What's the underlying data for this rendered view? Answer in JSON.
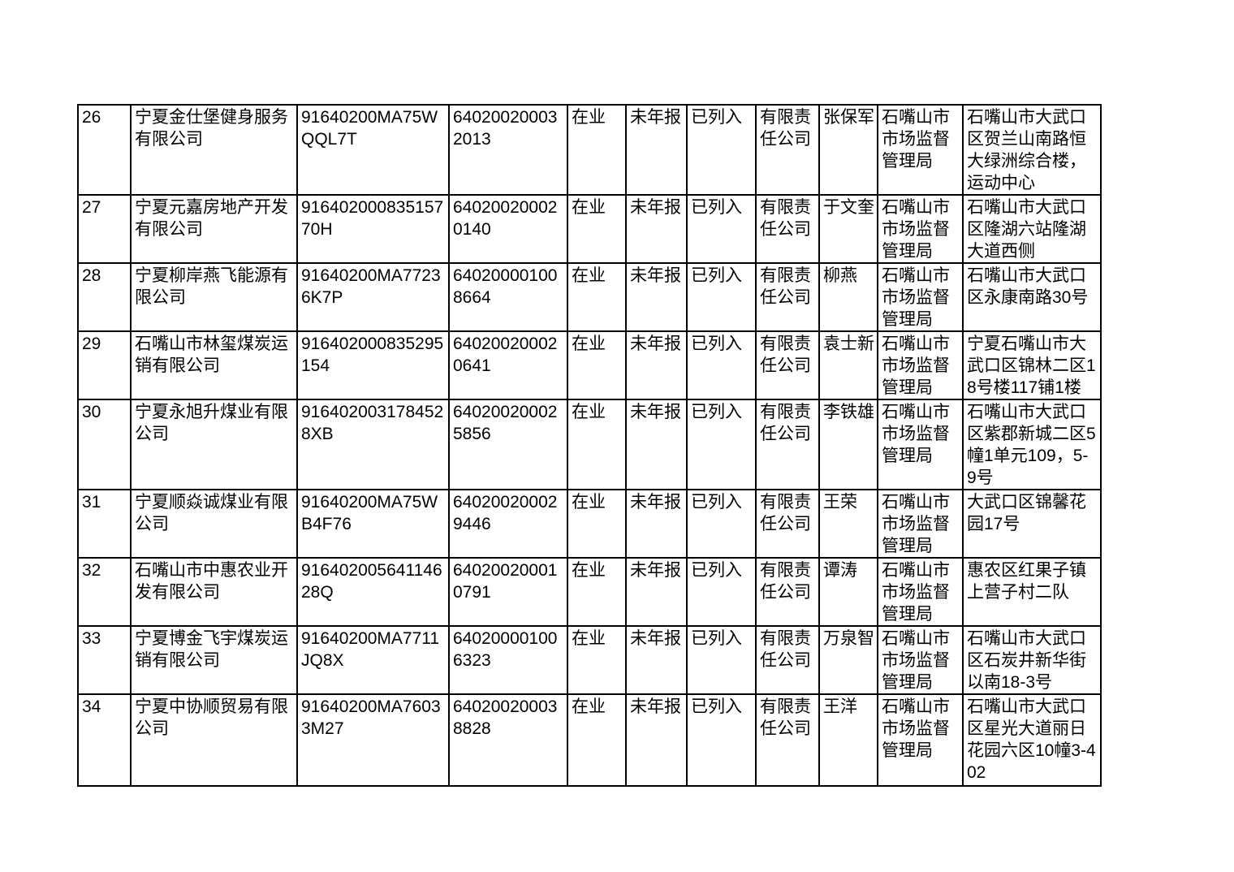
{
  "page": {
    "background_color": "#ffffff",
    "text_color": "#000000",
    "border_color": "#000000"
  },
  "table": {
    "rows": [
      {
        "no": "26",
        "company": "宁夏金仕堡健身服务有限公司",
        "credit_code": "91640200MA75WQQL7T",
        "reg_no": "640200200032013",
        "status": "在业",
        "annual_report": "未年报",
        "listed": "已列入",
        "type": "有限责任公司",
        "legal_rep": "张保军",
        "authority": "石嘴山市市场监督管理局",
        "address": "石嘴山市大武口区贺兰山南路恒大绿洲综合楼，运动中心"
      },
      {
        "no": "27",
        "company": "宁夏元嘉房地产开发有限公司",
        "credit_code": "91640200083515770H",
        "reg_no": "640200200020140",
        "status": "在业",
        "annual_report": "未年报",
        "listed": "已列入",
        "type": "有限责任公司",
        "legal_rep": "于文奎",
        "authority": "石嘴山市市场监督管理局",
        "address": "石嘴山市大武口区隆湖六站隆湖大道西侧"
      },
      {
        "no": "28",
        "company": "宁夏柳岸燕飞能源有限公司",
        "credit_code": "91640200MA77236K7P",
        "reg_no": "640200001008664",
        "status": "在业",
        "annual_report": "未年报",
        "listed": "已列入",
        "type": "有限责任公司",
        "legal_rep": "柳燕",
        "authority": "石嘴山市市场监督管理局",
        "address": "石嘴山市大武口区永康南路30号"
      },
      {
        "no": "29",
        "company": "石嘴山市林玺煤炭运销有限公司",
        "credit_code": "916402000835295154",
        "reg_no": "640200200020641",
        "status": "在业",
        "annual_report": "未年报",
        "listed": "已列入",
        "type": "有限责任公司",
        "legal_rep": "袁士新",
        "authority": "石嘴山市市场监督管理局",
        "address": "宁夏石嘴山市大武口区锦林二区18号楼117铺1楼"
      },
      {
        "no": "30",
        "company": "宁夏永旭升煤业有限公司",
        "credit_code": "9164020031784528XB",
        "reg_no": "640200200025856",
        "status": "在业",
        "annual_report": "未年报",
        "listed": "已列入",
        "type": "有限责任公司",
        "legal_rep": "李铁雄",
        "authority": "石嘴山市市场监督管理局",
        "address": "石嘴山市大武口区紫郡新城二区5幢1单元109，5-9号"
      },
      {
        "no": "31",
        "company": "宁夏顺焱诚煤业有限公司",
        "credit_code": "91640200MA75WB4F76",
        "reg_no": "640200200029446",
        "status": "在业",
        "annual_report": "未年报",
        "listed": "已列入",
        "type": "有限责任公司",
        "legal_rep": "王荣",
        "authority": "石嘴山市市场监督管理局",
        "address": "大武口区锦馨花园17号"
      },
      {
        "no": "32",
        "company": "石嘴山市中惠农业开发有限公司",
        "credit_code": "91640200564114628Q",
        "reg_no": "640200200010791",
        "status": "在业",
        "annual_report": "未年报",
        "listed": "已列入",
        "type": "有限责任公司",
        "legal_rep": "谭涛",
        "authority": "石嘴山市市场监督管理局",
        "address": "惠农区红果子镇上营子村二队"
      },
      {
        "no": "33",
        "company": "宁夏博金飞宇煤炭运销有限公司",
        "credit_code": "91640200MA7711JQ8X",
        "reg_no": "640200001006323",
        "status": "在业",
        "annual_report": "未年报",
        "listed": "已列入",
        "type": "有限责任公司",
        "legal_rep": "万泉智",
        "authority": "石嘴山市市场监督管理局",
        "address": "石嘴山市大武口区石炭井新华街以南18-3号"
      },
      {
        "no": "34",
        "company": "宁夏中协顺贸易有限公司",
        "credit_code": "91640200MA76033M27",
        "reg_no": "640200200038828",
        "status": "在业",
        "annual_report": "未年报",
        "listed": "已列入",
        "type": "有限责任公司",
        "legal_rep": "王洋",
        "authority": "石嘴山市市场监督管理局",
        "address": "石嘴山市大武口区星光大道丽日花园六区10幢3-402"
      }
    ]
  }
}
